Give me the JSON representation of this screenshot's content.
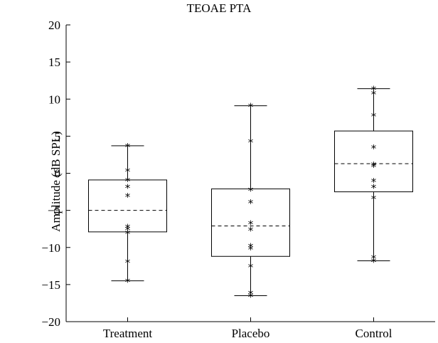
{
  "chart_data": {
    "type": "box",
    "title": "TEOAE PTA",
    "xlabel": "",
    "ylabel": "Amplitude (dB SPL)",
    "ylim": [
      -20,
      20
    ],
    "yticks": [
      -20,
      -15,
      -10,
      -5,
      0,
      5,
      10,
      15,
      20
    ],
    "categories": [
      "Treatment",
      "Placebo",
      "Control"
    ],
    "grid": false,
    "boxes": [
      {
        "category": "Treatment",
        "whisker_low": -14.5,
        "q1": -7.9,
        "median": -5.0,
        "q3": -0.9,
        "whisker_high": 3.7,
        "points": [
          3.7,
          0.4,
          -0.9,
          -1.8,
          -3.0,
          -7.2,
          -7.5,
          -8.0,
          -11.9,
          -14.5
        ]
      },
      {
        "category": "Placebo",
        "whisker_low": -16.5,
        "q1": -11.2,
        "median": -7.1,
        "q3": -2.1,
        "whisker_high": 9.1,
        "points": [
          9.1,
          4.3,
          -2.2,
          -3.9,
          -6.7,
          -7.6,
          -9.8,
          -10.1,
          -12.5,
          -16.1,
          -16.5
        ]
      },
      {
        "category": "Control",
        "whisker_low": -11.8,
        "q1": -2.5,
        "median": 1.3,
        "q3": 5.7,
        "whisker_high": 11.4,
        "points": [
          11.4,
          10.8,
          7.8,
          3.5,
          1.2,
          1.0,
          -1.0,
          -1.8,
          -3.3,
          -11.3,
          -11.8
        ]
      }
    ]
  }
}
